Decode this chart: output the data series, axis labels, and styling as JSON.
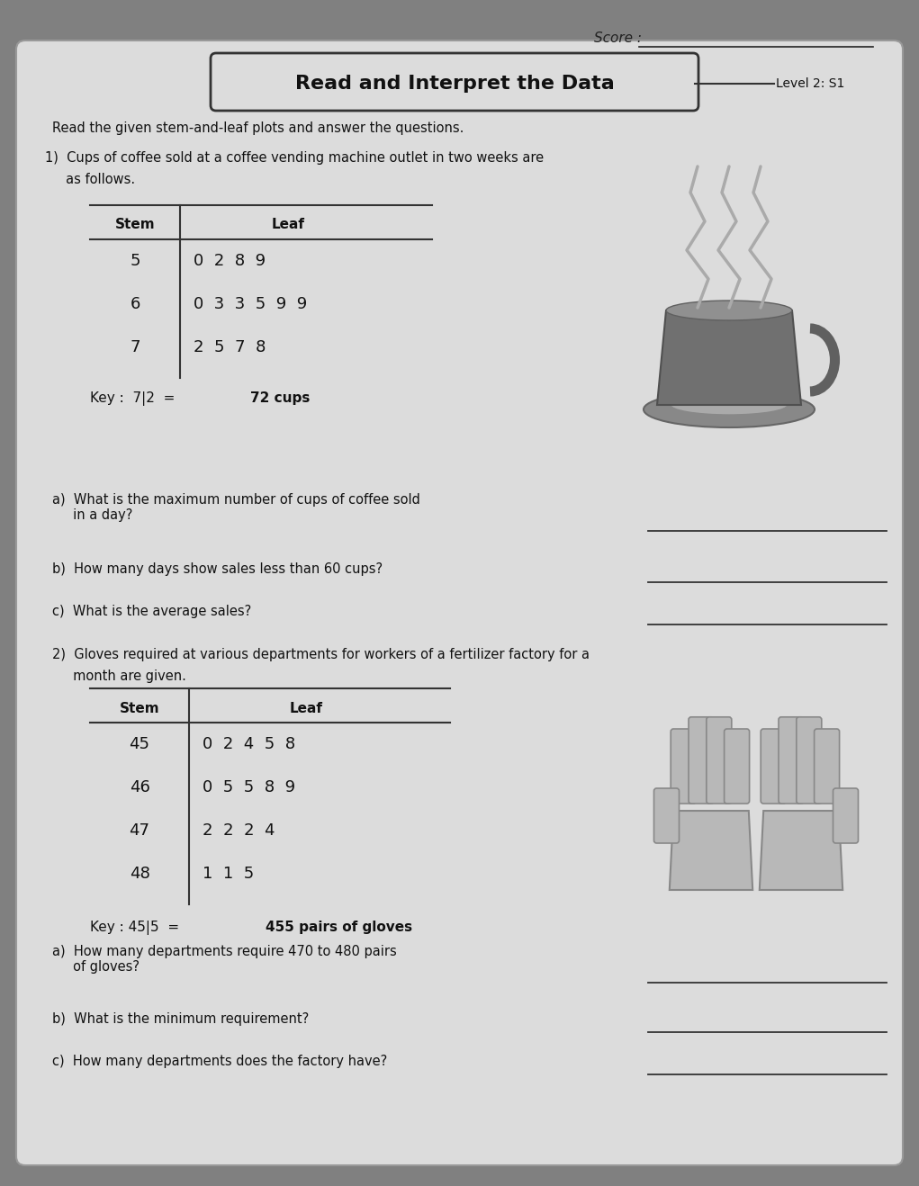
{
  "title": "Read and Interpret the Data",
  "level": "Level 2: S1",
  "score_label": "Score :",
  "intro_text": "Read the given stem-and-leaf plots and answer the questions.",
  "q1_text1": "1)  Cups of coffee sold at a coffee vending machine outlet in two weeks are",
  "q1_text2": "     as follows.",
  "table1_rows": [
    [
      "5",
      "0  2  8  9"
    ],
    [
      "6",
      "0  3  3  5  9  9"
    ],
    [
      "7",
      "2  5  7  8"
    ]
  ],
  "key1_normal": "Key :  7|2  = ",
  "key1_bold": "72 cups",
  "q1a": "a)  What is the maximum number of cups of coffee sold\n     in a day?",
  "q1b": "b)  How many days show sales less than 60 cups?",
  "q1c": "c)  What is the average sales?",
  "q2_text1": "2)  Gloves required at various departments for workers of a fertilizer factory for a",
  "q2_text2": "     month are given.",
  "table2_rows": [
    [
      "45",
      "0  2  4  5  8"
    ],
    [
      "46",
      "0  5  5  8  9"
    ],
    [
      "47",
      "2  2  2  4"
    ],
    [
      "48",
      "1  1  5"
    ]
  ],
  "key2_normal": "Key : 45|5  =  ",
  "key2_bold": "455 pairs of gloves",
  "q2a": "a)  How many departments require 470 to 480 pairs\n     of gloves?",
  "q2b": "b)  What is the minimum requirement?",
  "q2c": "c)  How many departments does the factory have?"
}
